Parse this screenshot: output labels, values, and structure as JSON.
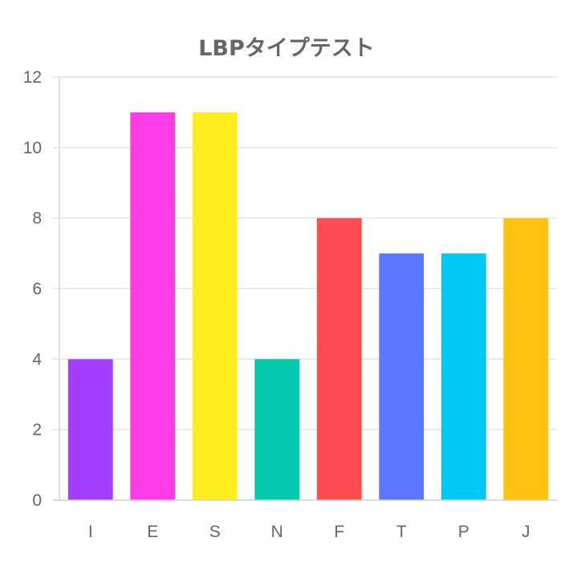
{
  "chart_data": {
    "type": "bar",
    "title": "LBPタイプテスト",
    "categories": [
      "I",
      "E",
      "S",
      "N",
      "F",
      "T",
      "P",
      "J"
    ],
    "values": [
      4,
      11,
      11,
      4,
      8,
      7,
      7,
      8
    ],
    "colors": [
      "#a33dff",
      "#ff3de6",
      "#ffee1f",
      "#00c9ac",
      "#ff4d4f",
      "#5c77ff",
      "#00c8f5",
      "#ffc20f"
    ],
    "ylim": [
      0,
      12
    ],
    "yticks": [
      0,
      2,
      4,
      6,
      8,
      10,
      12
    ],
    "xlabel": "",
    "ylabel": "",
    "grid": true,
    "legend": "none"
  }
}
